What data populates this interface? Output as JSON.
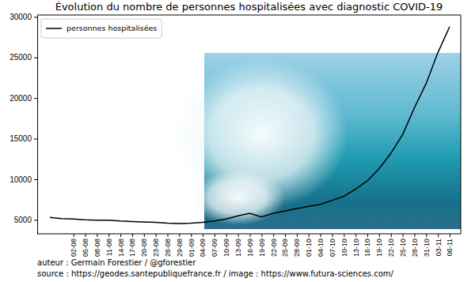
{
  "chart_data": {
    "type": "line",
    "title": "Évolution du nombre de personnes hospitalisées avec diagnostic COVID-19",
    "categories": [
      null,
      null,
      "02-08",
      "05-08",
      "08-08",
      "11-08",
      "14-08",
      "17-08",
      "20-08",
      "23-08",
      "26-08",
      "29-08",
      "01-09",
      "04-09",
      "07-09",
      "10-09",
      "13-09",
      "16-09",
      "19-09",
      "22-09",
      "25-09",
      "28-09",
      "01-10",
      "04-10",
      "07-10",
      "10-10",
      "13-10",
      "16-10",
      "19-10",
      "22-10",
      "25-10",
      "28-10",
      "31-10",
      "03-11",
      "06-11"
    ],
    "series": [
      {
        "name": "personnes hospitalisées",
        "color": "#000000",
        "values": [
          5300,
          5150,
          5100,
          5000,
          4950,
          4950,
          4850,
          4800,
          4750,
          4700,
          4600,
          4550,
          4600,
          4700,
          4850,
          5100,
          5500,
          5800,
          5350,
          5800,
          6100,
          6400,
          6650,
          6900,
          7400,
          7900,
          8800,
          9800,
          11300,
          13200,
          15500,
          18800,
          21800,
          25600,
          28800
        ]
      }
    ],
    "ylim": [
      3280,
      30230
    ],
    "yticks": [
      5000,
      10000,
      15000,
      20000,
      25000,
      30000
    ],
    "legend": "upper left",
    "annotations": [
      "auteur : Germain Forestier / @gforestier",
      "source : https://geodes.santepubliquefrance.fr / image : https://www.futura-sciences.com/"
    ]
  }
}
